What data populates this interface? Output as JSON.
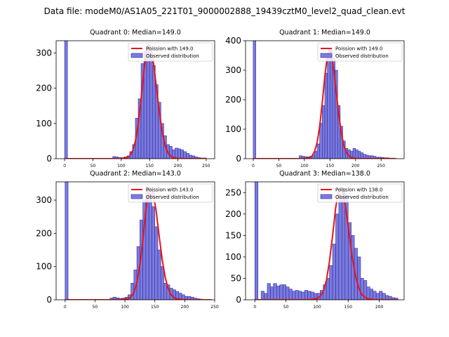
{
  "suptitle": "Data file: modeM0/AS1A05_221T01_9000002888_19439cztM0_level2_quad_clean.evt",
  "colors": {
    "bar_fill": "#7b7bdf",
    "bar_edge": "#2b2b9a",
    "curve": "#ee1111",
    "axis": "#000000"
  },
  "chart_data": [
    {
      "type": "bar",
      "title": "Quadrant 0: Median=149.0",
      "median": 149.0,
      "xlim": [
        -15,
        265
      ],
      "ylim": [
        0,
        335
      ],
      "xticks": [
        0,
        50,
        100,
        150,
        200,
        250
      ],
      "yticks": [
        0,
        100,
        200,
        300
      ],
      "bin_width": 5,
      "bar_lefts": [
        0,
        85,
        90,
        95,
        100,
        105,
        110,
        115,
        120,
        125,
        130,
        135,
        140,
        145,
        150,
        155,
        160,
        165,
        170,
        175,
        180,
        185,
        190,
        195,
        200,
        205,
        210,
        215,
        220,
        225,
        230,
        235,
        240,
        245
      ],
      "bar_heights": [
        335,
        6,
        5,
        3,
        3,
        5,
        8,
        20,
        40,
        115,
        170,
        270,
        305,
        320,
        300,
        265,
        210,
        160,
        100,
        65,
        40,
        35,
        25,
        30,
        28,
        25,
        20,
        15,
        10,
        8,
        5,
        3,
        2,
        2
      ],
      "curve_x": [
        0,
        90,
        100,
        110,
        115,
        120,
        125,
        130,
        135,
        140,
        145,
        149,
        153,
        158,
        163,
        168,
        173,
        178,
        183,
        190,
        200,
        210,
        250
      ],
      "curve_y": [
        0,
        0,
        0.5,
        3,
        8,
        22,
        50,
        100,
        170,
        250,
        310,
        325,
        310,
        260,
        190,
        125,
        70,
        35,
        15,
        4,
        0.5,
        0,
        0
      ],
      "legend": [
        "Poission with 149.0",
        "Observed distribution"
      ]
    },
    {
      "type": "bar",
      "title": "Quadrant 1: Median=149.0",
      "median": 149.0,
      "xlim": [
        -15,
        295
      ],
      "ylim": [
        0,
        400
      ],
      "xticks": [
        0,
        50,
        100,
        150,
        200,
        250
      ],
      "yticks": [
        0,
        100,
        200,
        300,
        400
      ],
      "bin_width": 5,
      "bar_lefts": [
        0,
        90,
        95,
        100,
        105,
        110,
        115,
        120,
        125,
        130,
        135,
        140,
        145,
        150,
        155,
        160,
        165,
        170,
        175,
        180,
        185,
        190,
        195,
        200,
        205,
        210,
        215,
        220,
        225,
        230,
        235,
        240,
        245,
        250,
        255,
        260,
        265,
        270
      ],
      "bar_heights": [
        400,
        10,
        8,
        7,
        6,
        8,
        12,
        25,
        50,
        120,
        180,
        290,
        340,
        370,
        340,
        300,
        180,
        110,
        60,
        35,
        30,
        25,
        35,
        30,
        25,
        20,
        15,
        12,
        10,
        10,
        8,
        5,
        5,
        4,
        3,
        3,
        2,
        2
      ],
      "curve_x": [
        0,
        90,
        100,
        110,
        115,
        120,
        125,
        130,
        135,
        140,
        145,
        149,
        153,
        158,
        163,
        168,
        173,
        178,
        183,
        190,
        200,
        210,
        280
      ],
      "curve_y": [
        0,
        0,
        0.5,
        3,
        9,
        25,
        55,
        110,
        190,
        280,
        350,
        370,
        350,
        295,
        215,
        140,
        80,
        40,
        18,
        5,
        0.5,
        0,
        0
      ],
      "legend": [
        "Poission with 149.0",
        "Observed distribution"
      ]
    },
    {
      "type": "bar",
      "title": "Quadrant 2: Median=143.0",
      "median": 143.0,
      "xlim": [
        -15,
        250
      ],
      "ylim": [
        0,
        355
      ],
      "xticks": [
        0,
        50,
        100,
        150,
        200,
        250
      ],
      "yticks": [
        0,
        100,
        200,
        300
      ],
      "bin_width": 5,
      "bar_lefts": [
        0,
        75,
        80,
        85,
        90,
        95,
        100,
        105,
        110,
        115,
        120,
        125,
        130,
        135,
        140,
        145,
        150,
        155,
        160,
        165,
        170,
        175,
        180,
        185,
        190,
        195,
        200,
        205,
        210,
        215,
        220,
        225
      ],
      "bar_heights": [
        355,
        5,
        8,
        6,
        4,
        5,
        8,
        15,
        50,
        90,
        160,
        240,
        300,
        340,
        320,
        280,
        220,
        150,
        100,
        50,
        45,
        35,
        30,
        25,
        20,
        15,
        10,
        10,
        8,
        5,
        3,
        2
      ],
      "curve_x": [
        0,
        85,
        95,
        105,
        110,
        115,
        120,
        125,
        130,
        135,
        139,
        143,
        147,
        152,
        157,
        162,
        167,
        172,
        177,
        184,
        195,
        205,
        245
      ],
      "curve_y": [
        0,
        0,
        0.5,
        3,
        8,
        22,
        52,
        105,
        180,
        270,
        320,
        335,
        320,
        270,
        195,
        125,
        70,
        35,
        15,
        4,
        0.5,
        0,
        0
      ],
      "legend": [
        "Poission with 143.0",
        "Observed distribution"
      ]
    },
    {
      "type": "bar",
      "title": "Quadrant 3: Median=138.0",
      "median": 138.0,
      "xlim": [
        -15,
        240
      ],
      "ylim": [
        0,
        275
      ],
      "xticks": [
        0,
        50,
        100,
        150,
        200
      ],
      "yticks": [
        0,
        50,
        100,
        150,
        200,
        250
      ],
      "bin_width": 5,
      "bar_lefts": [
        0,
        10,
        15,
        20,
        25,
        30,
        35,
        40,
        45,
        50,
        55,
        60,
        65,
        70,
        75,
        80,
        85,
        90,
        95,
        100,
        105,
        110,
        115,
        120,
        125,
        130,
        135,
        140,
        145,
        150,
        155,
        160,
        165,
        170,
        175,
        180,
        185,
        190,
        195,
        200,
        205,
        210,
        215,
        220,
        225
      ],
      "bar_heights": [
        275,
        20,
        15,
        38,
        30,
        38,
        32,
        35,
        35,
        30,
        25,
        20,
        22,
        20,
        18,
        22,
        20,
        18,
        15,
        15,
        22,
        35,
        50,
        80,
        130,
        200,
        240,
        260,
        245,
        180,
        150,
        120,
        100,
        50,
        45,
        30,
        25,
        20,
        15,
        20,
        15,
        10,
        8,
        5,
        4
      ],
      "curve_x": [
        0,
        80,
        90,
        100,
        105,
        110,
        115,
        120,
        125,
        130,
        134,
        138,
        142,
        147,
        152,
        157,
        162,
        167,
        172,
        180,
        190,
        200,
        230
      ],
      "curve_y": [
        0,
        0,
        0.5,
        3,
        8,
        20,
        45,
        90,
        150,
        215,
        250,
        262,
        250,
        205,
        150,
        95,
        55,
        28,
        12,
        3,
        0.5,
        0,
        0
      ],
      "legend": [
        "Poission with 138.0",
        "Observed distribution"
      ]
    }
  ]
}
